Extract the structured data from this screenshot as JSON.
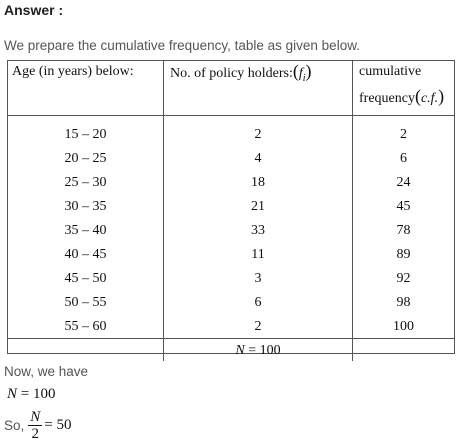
{
  "heading": "Answer :",
  "intro": "We prepare the cumulative frequency, table as given below.",
  "table": {
    "headers": {
      "age": "Age (in years) below:",
      "policy_prefix": "No. of policy holders:",
      "policy_symbol": "f",
      "policy_sub": "i",
      "cf_line1": "cumulative",
      "cf_line2": "frequency",
      "cf_symbol": "c.f."
    },
    "rows": [
      {
        "age": "15 – 20",
        "f": "2",
        "cf": "2"
      },
      {
        "age": "20 – 25",
        "f": "4",
        "cf": "6"
      },
      {
        "age": "25 – 30",
        "f": "18",
        "cf": "24"
      },
      {
        "age": "30 – 35",
        "f": "21",
        "cf": "45"
      },
      {
        "age": "35 – 40",
        "f": "33",
        "cf": "78"
      },
      {
        "age": "40 – 45",
        "f": "11",
        "cf": "89"
      },
      {
        "age": "45 – 50",
        "f": "3",
        "cf": "92"
      },
      {
        "age": "50 – 55",
        "f": "6",
        "cf": "98"
      },
      {
        "age": "55 – 60",
        "f": "2",
        "cf": "100"
      }
    ],
    "total": {
      "symbol": "N",
      "equals": " = 100"
    }
  },
  "now_text": "Now, we have",
  "n_line": {
    "symbol": "N",
    "equals": " = 100"
  },
  "so_line": {
    "label": "So,",
    "numerator": "N",
    "denominator": "2",
    "result": "= 50"
  }
}
